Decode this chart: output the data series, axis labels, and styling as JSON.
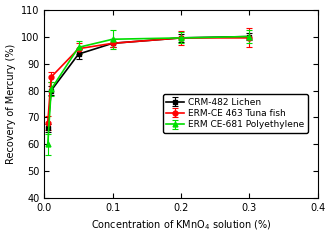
{
  "x": [
    0.005,
    0.01,
    0.05,
    0.1,
    0.2,
    0.3
  ],
  "crm482_y": [
    66.0,
    80.0,
    93.5,
    97.5,
    99.5,
    100.0
  ],
  "crm482_yerr": [
    1.5,
    1.5,
    2.0,
    1.5,
    1.5,
    1.2
  ],
  "erm463_y": [
    68.0,
    85.0,
    95.5,
    97.5,
    99.5,
    99.5
  ],
  "erm463_yerr": [
    2.5,
    2.0,
    2.0,
    1.5,
    2.5,
    3.5
  ],
  "erm681_y": [
    60.0,
    80.5,
    96.0,
    99.0,
    99.5,
    100.0
  ],
  "erm681_yerr": [
    4.0,
    2.5,
    2.5,
    3.5,
    2.0,
    2.5
  ],
  "crm482_color": "#000000",
  "erm463_color": "#ff0000",
  "erm681_color": "#00dd00",
  "crm482_label_bold": "CRM-482",
  "crm482_label_normal": " Lichen",
  "erm463_label_bold": "ERM-CE 463",
  "erm463_label_normal": " Tuna fish",
  "erm681_label_bold": "ERM CE-681",
  "erm681_label_normal": " Polyethylene",
  "xlabel": "Concentration of KMnO$_4$ solution (%)",
  "ylabel": "Recovery of Mercury (%)",
  "xlim": [
    0.0,
    0.4
  ],
  "ylim": [
    40,
    110
  ],
  "yticks": [
    40,
    50,
    60,
    70,
    80,
    90,
    100,
    110
  ],
  "xticks": [
    0.0,
    0.1,
    0.2,
    0.3,
    0.4
  ],
  "label_fontsize": 7,
  "tick_fontsize": 7,
  "legend_fontsize": 6.5
}
